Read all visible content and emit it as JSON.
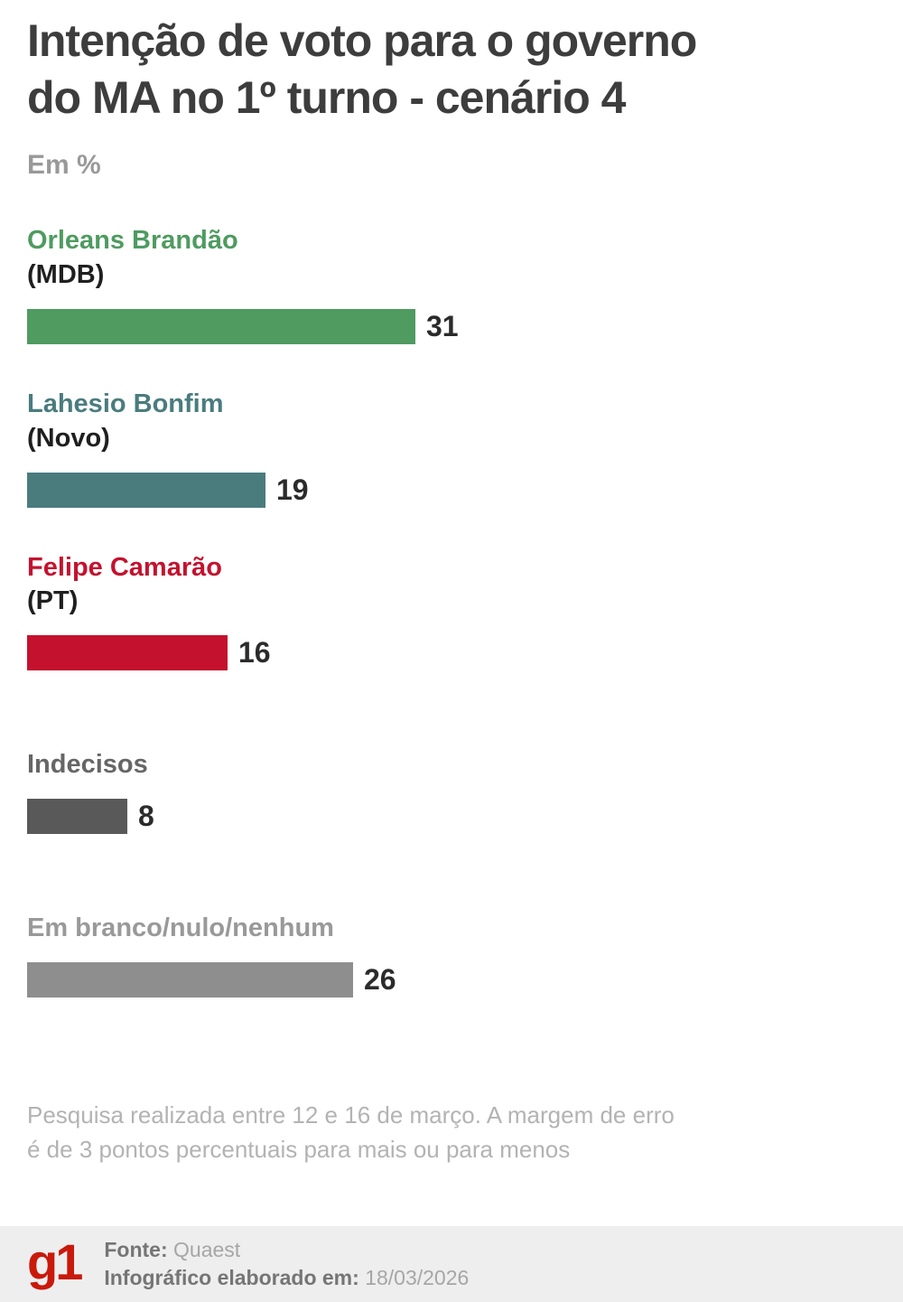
{
  "title": {
    "line1": "Intenção de voto para o governo",
    "line2": "do MA no 1º turno - cenário 4"
  },
  "subtitle": "Em %",
  "chart_data": {
    "type": "bar",
    "orientation": "horizontal",
    "title": "Intenção de voto para o governo do MA no 1º turno - cenário 4",
    "unit_label": "Em %",
    "xlim": [
      0,
      31
    ],
    "grid": false,
    "legend": "none",
    "categories": [
      "Orleans Brandão (MDB)",
      "Lahesio Bonfim (Novo)",
      "Felipe Camarão (PT)",
      "Indecisos",
      "Em branco/nulo/nenhum"
    ],
    "values": [
      31,
      19,
      16,
      8,
      26
    ],
    "entries": [
      {
        "name": "Orleans Brandão",
        "party": "(MDB)",
        "value": 31,
        "bar_color": "#4f9b60",
        "name_color": "#4f9b60"
      },
      {
        "name": "Lahesio Bonfim",
        "party": "(Novo)",
        "value": 19,
        "bar_color": "#4a7c7e",
        "name_color": "#4a7c7e"
      },
      {
        "name": "Felipe Camarão",
        "party": "(PT)",
        "value": 16,
        "bar_color": "#c4122e",
        "name_color": "#c4122e"
      },
      {
        "name": "Indecisos",
        "party": "",
        "value": 8,
        "bar_color": "#595959",
        "name_color": "#666666"
      },
      {
        "name": "Em branco/nulo/nenhum",
        "party": "",
        "value": 26,
        "bar_color": "#8e8e8e",
        "name_color": "#999999"
      }
    ]
  },
  "footnote": {
    "line1": "Pesquisa realizada entre 12 e 16 de março. A margem de erro",
    "line2": "é de 3 pontos percentuais para mais ou para menos"
  },
  "footer": {
    "logo": "g1",
    "source_label": "Fonte:",
    "source_value": "Quaest",
    "elaborated_label": "Infográfico elaborado em:",
    "elaborated_value": "18/03/2026"
  },
  "colors": {
    "background": "#ffffff",
    "title": "#3d3d3d",
    "subtitle": "#999999",
    "party": "#1f1f1f",
    "value": "#2b2b2b",
    "footnote": "#b3b3b3",
    "footer_bg": "#eeeeee",
    "footer_label": "#757575",
    "footer_value": "#a6a6a6",
    "logo": "#c9190b"
  }
}
